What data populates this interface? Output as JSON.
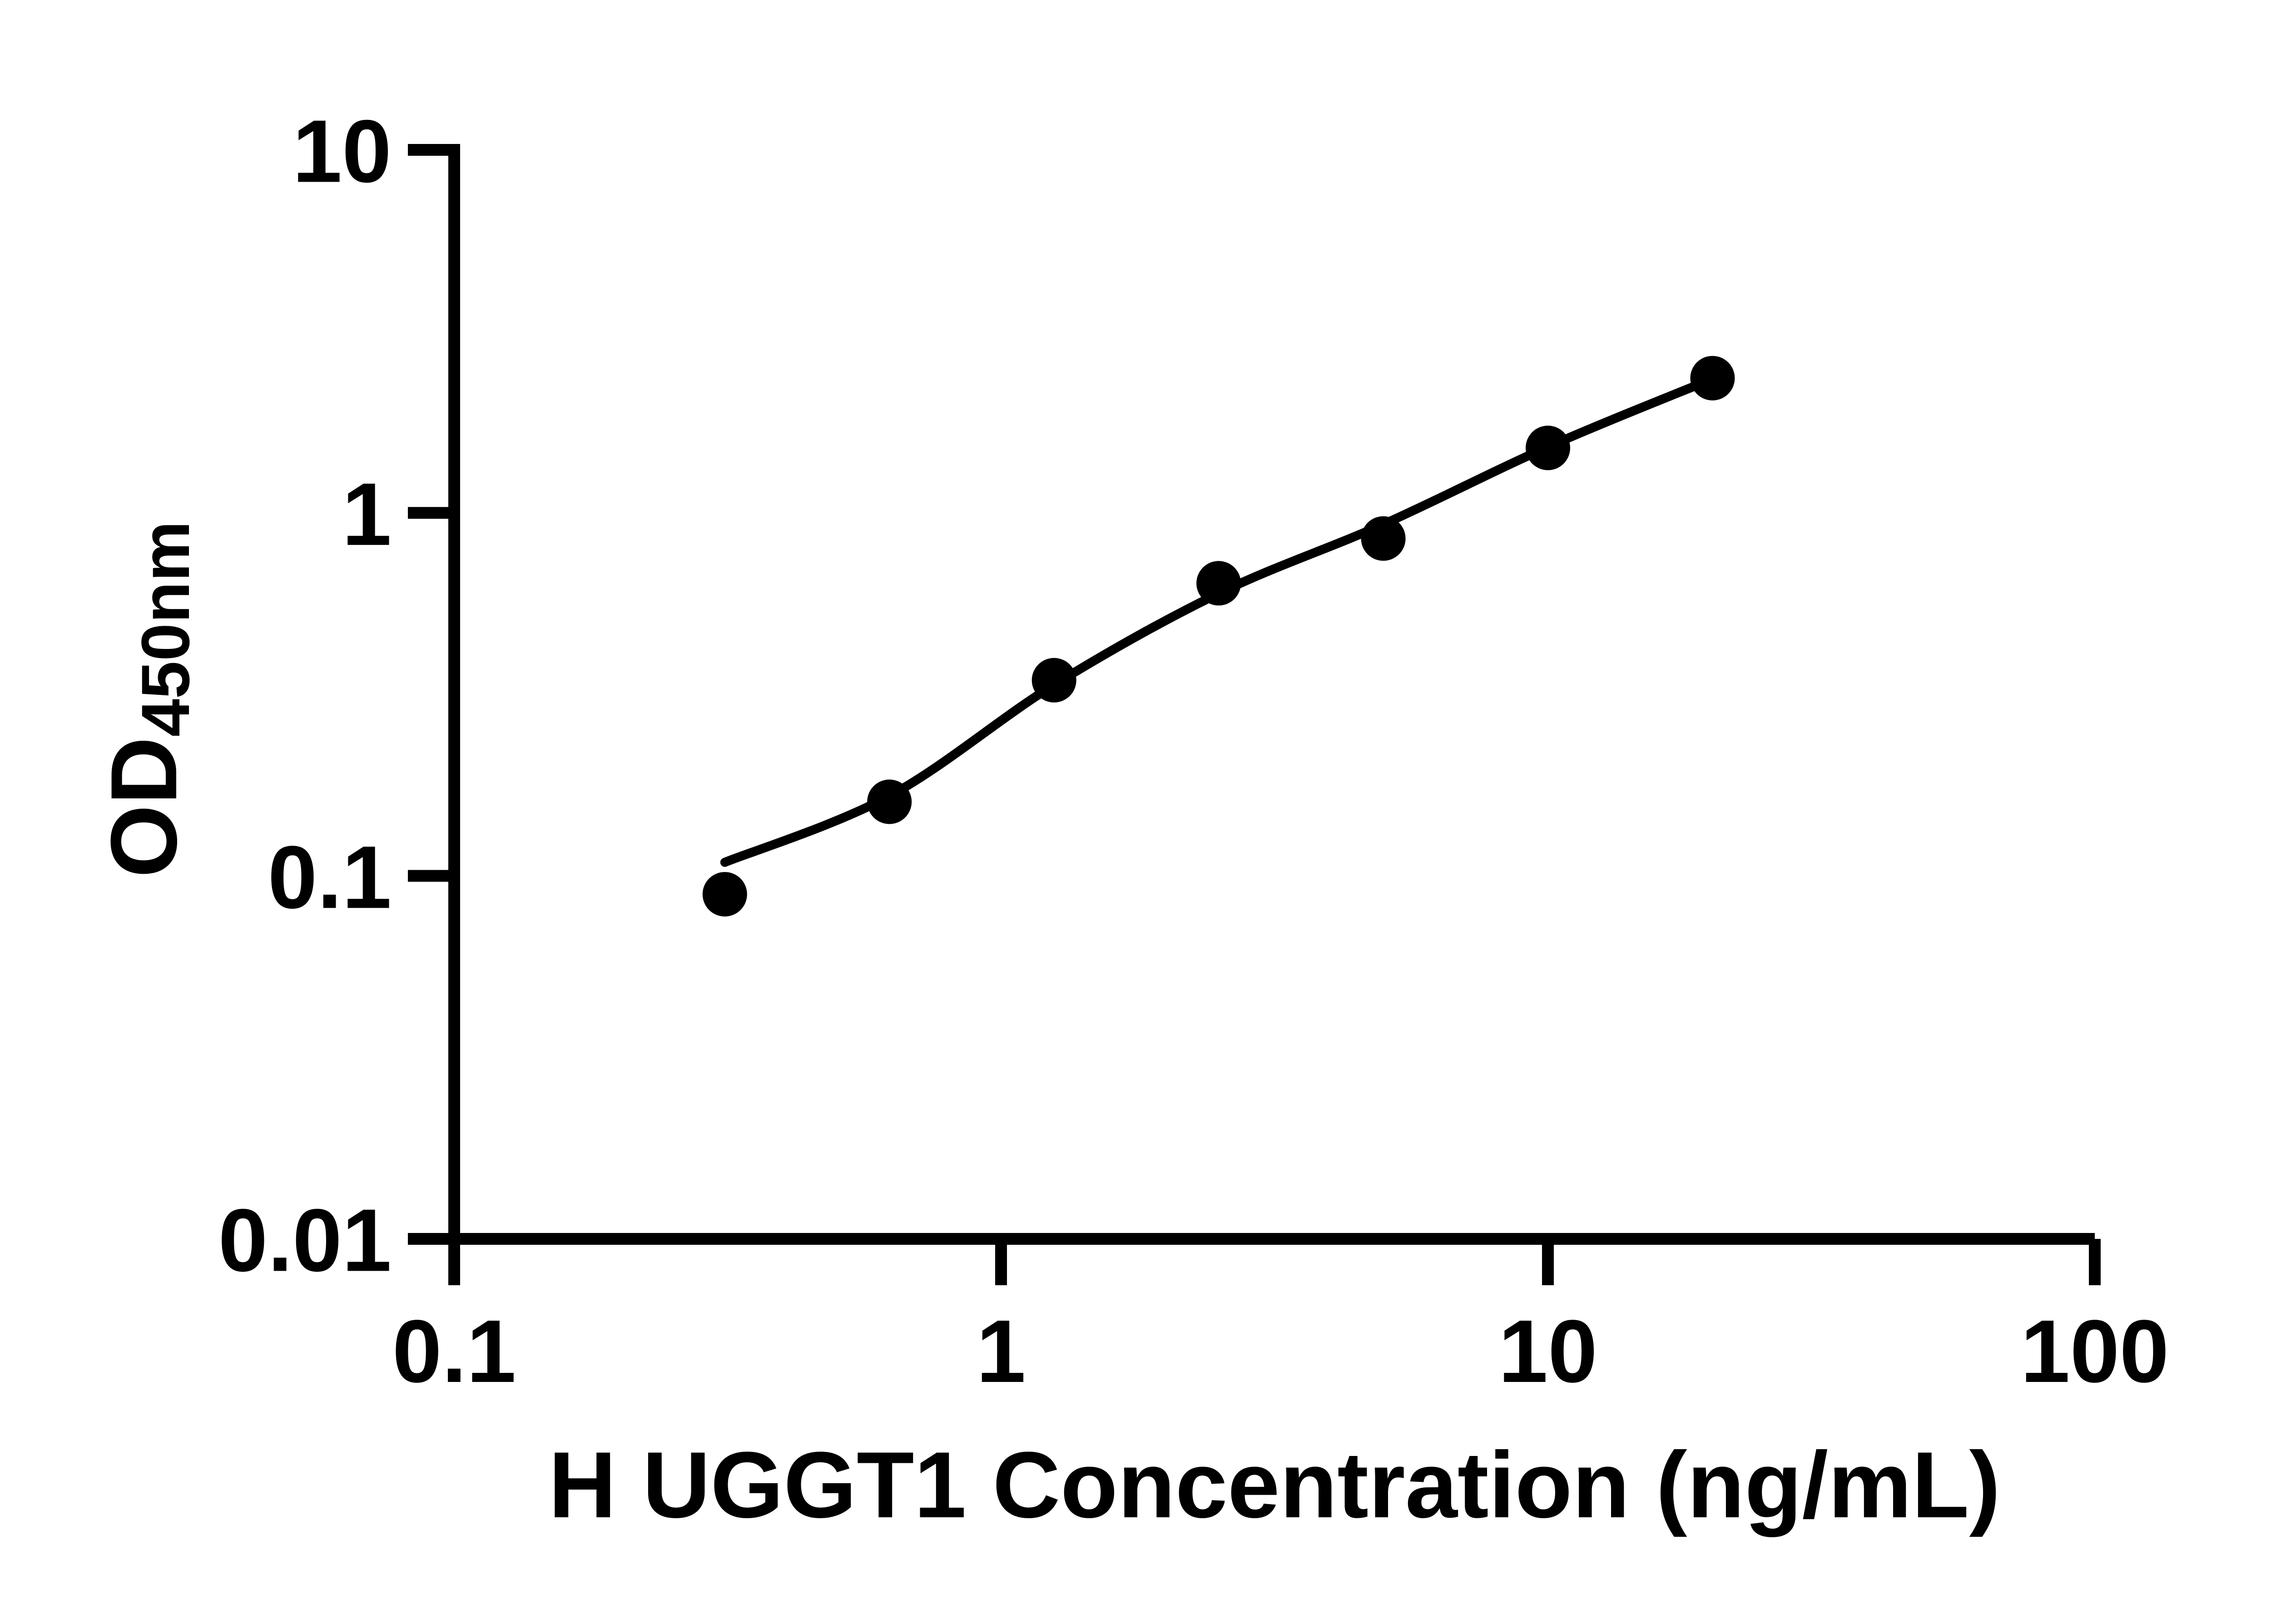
{
  "page": {
    "background_color": "#ffffff"
  },
  "colors": {
    "axis": "#000000",
    "text": "#000000",
    "marker": "#000000",
    "curve": "#000000"
  },
  "chart_data": {
    "type": "scatter",
    "title": "",
    "xlabel": "H UGGT1 Concentration (ng/mL)",
    "ylabel_base": "OD",
    "ylabel_subscript": "450nm",
    "x_scale": "log10",
    "y_scale": "log10",
    "xlim": [
      0.1,
      100
    ],
    "ylim": [
      0.01,
      10
    ],
    "grid": false,
    "legend_position": "none",
    "x_ticks": [
      {
        "value": 0.1,
        "label": "0.1"
      },
      {
        "value": 1,
        "label": "1"
      },
      {
        "value": 10,
        "label": "10"
      },
      {
        "value": 100,
        "label": "100"
      }
    ],
    "y_ticks": [
      {
        "value": 10,
        "label": "10"
      },
      {
        "value": 1,
        "label": "1"
      },
      {
        "value": 0.1,
        "label": "0.1"
      },
      {
        "value": 0.01,
        "label": "0.01"
      }
    ],
    "series": [
      {
        "name": "H UGGT1 standard points",
        "marker": "filled-circle",
        "points": [
          {
            "x": 0.3125,
            "y": 0.089
          },
          {
            "x": 0.625,
            "y": 0.16
          },
          {
            "x": 1.25,
            "y": 0.346
          },
          {
            "x": 2.5,
            "y": 0.64
          },
          {
            "x": 5,
            "y": 0.85
          },
          {
            "x": 10,
            "y": 1.51
          },
          {
            "x": 20,
            "y": 2.35
          }
        ]
      }
    ],
    "fit_curve": {
      "name": "fitted standard curve",
      "points": [
        {
          "x": 0.3125,
          "y": 0.109
        },
        {
          "x": 0.625,
          "y": 0.166
        },
        {
          "x": 1.25,
          "y": 0.336
        },
        {
          "x": 2.5,
          "y": 0.6
        },
        {
          "x": 5,
          "y": 0.93
        },
        {
          "x": 10,
          "y": 1.52
        },
        {
          "x": 20,
          "y": 2.34
        }
      ]
    }
  }
}
